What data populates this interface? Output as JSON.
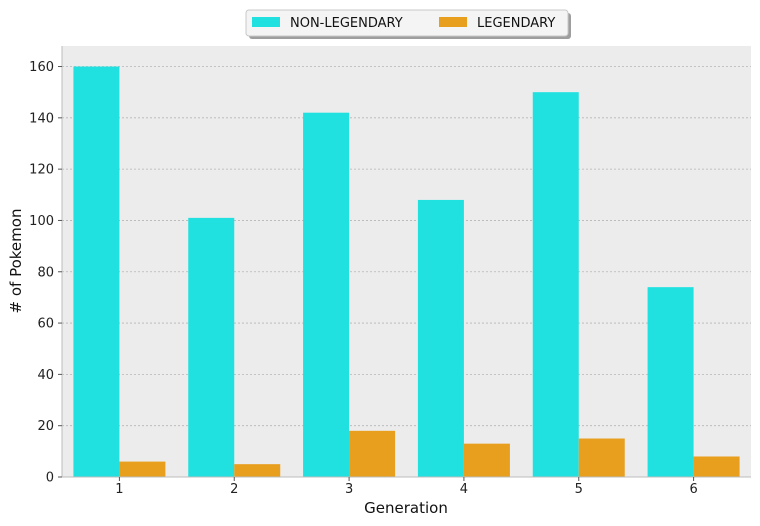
{
  "chart_data": {
    "type": "bar",
    "categories": [
      "1",
      "2",
      "3",
      "4",
      "5",
      "6"
    ],
    "series": [
      {
        "name": "NON-LEGENDARY",
        "color": "#21e0e0",
        "values": [
          160,
          101,
          142,
          108,
          150,
          74
        ]
      },
      {
        "name": "LEGENDARY",
        "color": "#e89f1e",
        "values": [
          6,
          5,
          18,
          13,
          15,
          8
        ]
      }
    ],
    "xlabel": "Generation",
    "ylabel": "# of Pokemon",
    "ylim": [
      0,
      168
    ],
    "yticks": [
      0,
      20,
      40,
      60,
      80,
      100,
      120,
      140,
      160
    ],
    "grid": true,
    "grid_axis": "y",
    "legend": "top-center",
    "background": "#ececec"
  }
}
